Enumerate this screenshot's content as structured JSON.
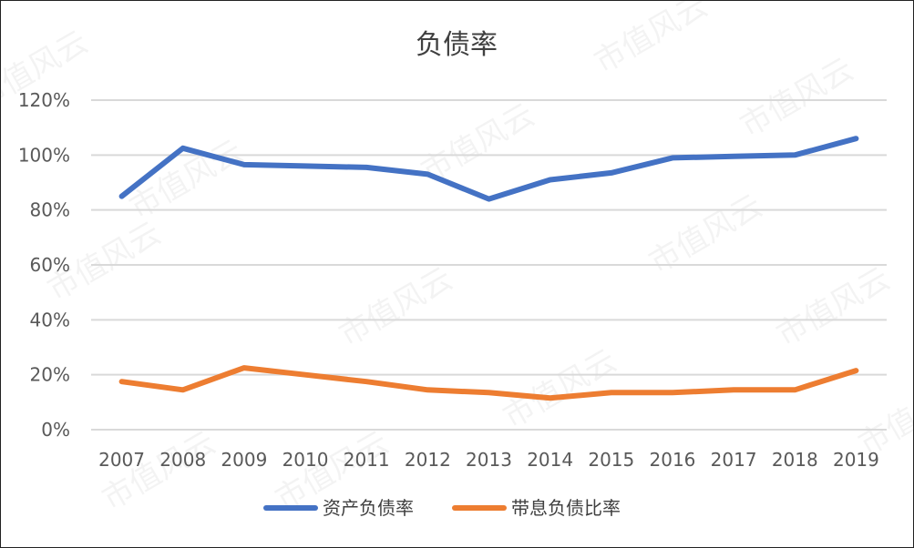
{
  "chart_data": {
    "type": "line",
    "title": "负债率",
    "categories": [
      "2007",
      "2008",
      "2009",
      "2010",
      "2011",
      "2012",
      "2013",
      "2014",
      "2015",
      "2016",
      "2017",
      "2018",
      "2019"
    ],
    "y_ticks": [
      "0%",
      "20%",
      "40%",
      "60%",
      "80%",
      "100%",
      "120%"
    ],
    "ylim": [
      0,
      120
    ],
    "grid": true,
    "legend_position": "bottom",
    "series": [
      {
        "name": "资产负债率",
        "color": "#4472C4",
        "values": [
          85,
          102.5,
          96.5,
          96,
          95.5,
          93,
          84,
          91,
          93.5,
          99,
          99.5,
          100,
          106
        ]
      },
      {
        "name": "带息负债比率",
        "color": "#ED7D31",
        "values": [
          17.5,
          14.5,
          22.5,
          20,
          17.5,
          14.5,
          13.5,
          11.5,
          13.5,
          13.5,
          14.5,
          14.5,
          21.5
        ]
      }
    ]
  },
  "watermark": "市值风云"
}
